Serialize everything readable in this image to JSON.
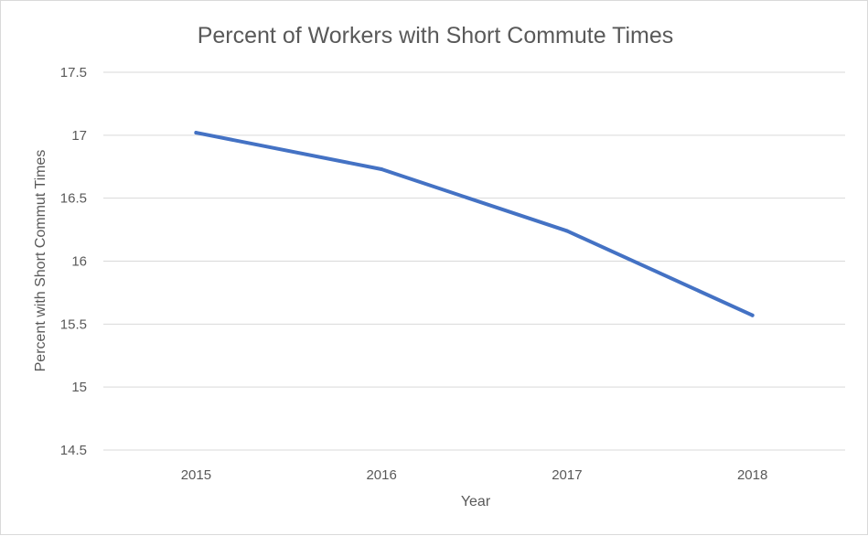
{
  "chart_data": {
    "type": "line",
    "title": "Percent of Workers with Short Commute Times",
    "xlabel": "Year",
    "ylabel": "Percent with Short Commut Times",
    "categories": [
      "2015",
      "2016",
      "2017",
      "2018"
    ],
    "series": [
      {
        "values": [
          17.02,
          16.73,
          16.24,
          15.57
        ],
        "color": "#4472c4"
      }
    ],
    "ylim": [
      14.5,
      17.5
    ],
    "yticks": [
      "14.5",
      "15",
      "15.5",
      "16",
      "16.5",
      "17",
      "17.5"
    ],
    "grid": true,
    "legend": "none"
  }
}
